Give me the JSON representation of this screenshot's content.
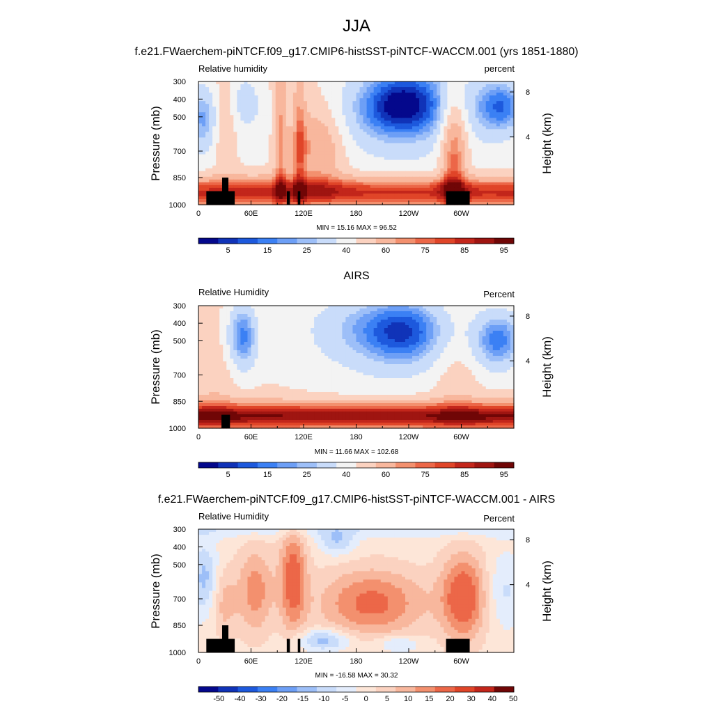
{
  "figure": {
    "main_title": "JJA",
    "colors": {
      "rh": [
        "#04088c",
        "#1033b8",
        "#1d59dd",
        "#3b80f4",
        "#6d9ff6",
        "#9dbff8",
        "#c9dcfa",
        "#f3f3f3",
        "#fbd2c0",
        "#f8b79d",
        "#f3906e",
        "#ec6748",
        "#e04528",
        "#c3261b",
        "#9f1511",
        "#700606"
      ],
      "diff": [
        "#04088c",
        "#1033b8",
        "#1d59dd",
        "#3b80f4",
        "#6d9ff6",
        "#9dbff8",
        "#c9dcfa",
        "#e4edfc",
        "#fde6d8",
        "#fbd2c0",
        "#f8b79d",
        "#f3906e",
        "#ec6748",
        "#e04528",
        "#c3261b",
        "#700606"
      ]
    }
  },
  "chart_data": [
    {
      "type": "heatmap",
      "title": "f.e21.FWaerchem-piNTCF.f09_g17.CMIP6-histSST-piNTCF-WACCM.001 (yrs 1851-1880)",
      "left_label": "Relative humidity",
      "right_label": "percent",
      "ylabel": "Pressure (mb)",
      "y2label": "Height (km)",
      "x_ticks": [
        "0",
        "60E",
        "120E",
        "180",
        "120W",
        "60W"
      ],
      "y_ticks": [
        "300",
        "400",
        "500",
        "700",
        "850",
        "1000"
      ],
      "y2_ticks": [
        "8",
        "4"
      ],
      "stats": "MIN =  15.16  MAX =  96.52",
      "colorbar_labels": [
        "5",
        "15",
        "25",
        "40",
        "60",
        "75",
        "85",
        "95"
      ],
      "palette": "rh",
      "field": "model",
      "terrain": true
    },
    {
      "type": "heatmap",
      "title": "AIRS",
      "left_label": "Relative Humidity",
      "right_label": "Percent",
      "ylabel": "Pressure (mb)",
      "y2label": "Height (km)",
      "x_ticks": [
        "0",
        "60E",
        "120E",
        "180",
        "120W",
        "60W"
      ],
      "y_ticks": [
        "300",
        "400",
        "500",
        "700",
        "850",
        "1000"
      ],
      "y2_ticks": [
        "8",
        "4"
      ],
      "stats": "MIN =  11.66  MAX = 102.68",
      "colorbar_labels": [
        "5",
        "15",
        "25",
        "40",
        "60",
        "75",
        "85",
        "95"
      ],
      "palette": "rh",
      "field": "obs",
      "terrain": false
    },
    {
      "type": "heatmap",
      "title": "f.e21.FWaerchem-piNTCF.f09_g17.CMIP6-histSST-piNTCF-WACCM.001 - AIRS",
      "left_label": "Relative Humidity",
      "right_label": "Percent",
      "ylabel": "Pressure (mb)",
      "y2label": "Height (km)",
      "x_ticks": [
        "0",
        "60E",
        "120E",
        "180",
        "120W",
        "60W"
      ],
      "y_ticks": [
        "300",
        "400",
        "500",
        "700",
        "850",
        "1000"
      ],
      "y2_ticks": [
        "8",
        "4"
      ],
      "stats": "MIN = -16.58  MAX =  30.32",
      "colorbar_labels": [
        "-50",
        "-40",
        "-30",
        "-20",
        "-15",
        "-10",
        "-5",
        "0",
        "5",
        "10",
        "15",
        "20",
        "30",
        "40",
        "50"
      ],
      "palette": "diff",
      "field": "diff",
      "terrain": true
    }
  ]
}
